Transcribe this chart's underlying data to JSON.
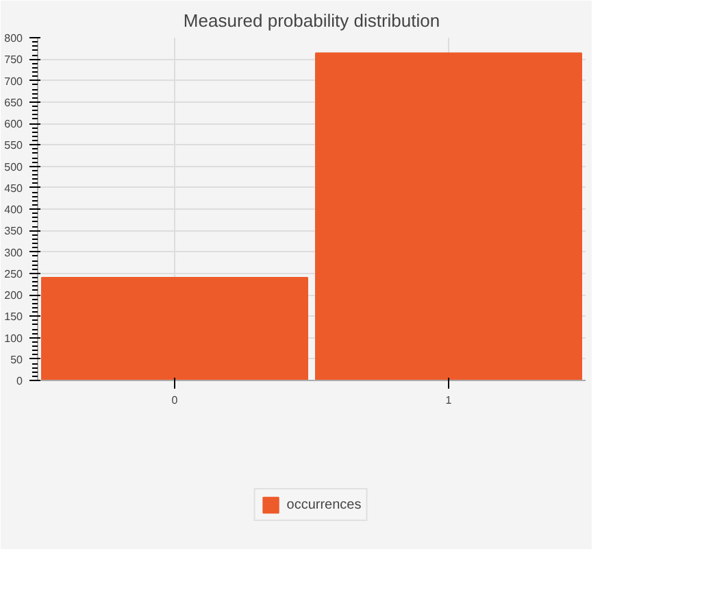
{
  "chart_data": {
    "type": "bar",
    "title": "Measured probability distribution",
    "categories": [
      "0",
      "1"
    ],
    "series": [
      {
        "name": "occurrences",
        "color": "#ee5b2b",
        "values": [
          240,
          764
        ]
      }
    ],
    "ylim": [
      0,
      800
    ],
    "yticks": [
      0,
      50,
      100,
      150,
      200,
      250,
      300,
      350,
      400,
      450,
      500,
      550,
      600,
      650,
      700,
      750,
      800
    ],
    "grid": true,
    "legend": "bottom"
  }
}
